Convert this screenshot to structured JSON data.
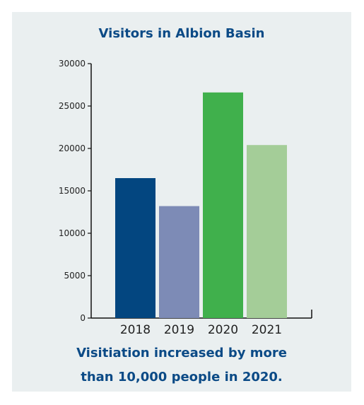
{
  "chart_data": {
    "type": "bar",
    "title": "Visitors in Albion Basin",
    "categories": [
      "2018",
      "2019",
      "2020",
      "2021"
    ],
    "values": [
      16500,
      13200,
      26600,
      20400
    ],
    "colors": [
      "#034680",
      "#7d8bb6",
      "#40b04c",
      "#a4cd98"
    ],
    "yticks": [
      0,
      5000,
      10000,
      15000,
      20000,
      25000,
      30000
    ],
    "ylim": [
      0,
      30000
    ],
    "xlabel": "",
    "ylabel": "",
    "grid": false
  },
  "caption": {
    "line1": "Visitiation increased by more",
    "line2": "than 10,000 people in 2020."
  }
}
